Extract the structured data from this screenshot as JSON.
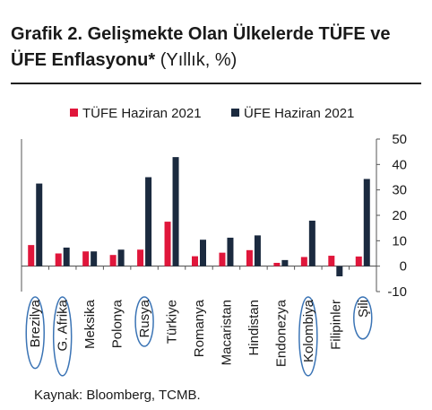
{
  "header": {
    "title": "Grafik 2. Gelişmekte Olan Ülkelerde TÜFE ve ÜFE Enflasyonu*",
    "subtitle": "(Yıllık, %)"
  },
  "footer": {
    "source": "Kaynak: Bloomberg, TCMB."
  },
  "chart_data": {
    "type": "bar",
    "categories": [
      "Brezilya",
      "G. Afrika",
      "Meksika",
      "Polonya",
      "Rusya",
      "Türkiye",
      "Romanya",
      "Macaristan",
      "Hindistan",
      "Endonezya",
      "Kolombiya",
      "Filipinler",
      "Şili"
    ],
    "series": [
      {
        "name": "TÜFE Haziran 2021",
        "color": "#e0163b",
        "values": [
          8.3,
          5.0,
          5.8,
          4.4,
          6.5,
          17.5,
          3.9,
          5.3,
          6.3,
          1.3,
          3.6,
          4.1,
          3.8
        ]
      },
      {
        "name": "ÜFE Haziran 2021",
        "color": "#1b2a3f",
        "values": [
          32.5,
          7.3,
          5.8,
          6.5,
          35.0,
          42.9,
          10.4,
          11.2,
          12.1,
          2.4,
          17.9,
          -4.0,
          34.3
        ]
      }
    ],
    "highlighted_categories": [
      "Brezilya",
      "G. Afrika",
      "Rusya",
      "Kolombiya",
      "Şili"
    ],
    "highlight_color": "#3b74b5",
    "ylim": [
      -10,
      50
    ],
    "yticks": [
      50,
      40,
      30,
      20,
      10,
      0,
      -10
    ],
    "y_axis_side": "right",
    "legend_position": "top",
    "grid": false,
    "xlabel": "",
    "ylabel": ""
  }
}
